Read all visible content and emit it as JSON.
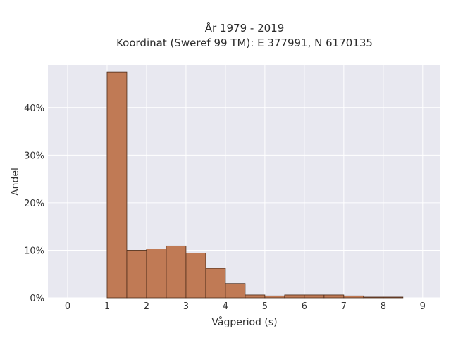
{
  "chart_data": {
    "type": "bar",
    "title_lines": [
      "År 1979 - 2019",
      "Koordinat (Sweref 99 TM): E 377991, N 6170135"
    ],
    "xlabel": "Vågperiod (s)",
    "ylabel": "Andel",
    "xlim": [
      -0.5,
      9.45
    ],
    "ylim": [
      0,
      49
    ],
    "x_ticks": [
      0,
      1,
      2,
      3,
      4,
      5,
      6,
      7,
      8,
      9
    ],
    "y_ticks": [
      0,
      10,
      20,
      30,
      40
    ],
    "y_tick_suffix": "%",
    "bin_width": 0.5,
    "bins": [
      {
        "start": 1.0,
        "value": 47.5
      },
      {
        "start": 1.5,
        "value": 10.0
      },
      {
        "start": 2.0,
        "value": 10.3
      },
      {
        "start": 2.5,
        "value": 10.9
      },
      {
        "start": 3.0,
        "value": 9.4
      },
      {
        "start": 3.5,
        "value": 6.2
      },
      {
        "start": 4.0,
        "value": 3.0
      },
      {
        "start": 4.5,
        "value": 0.6
      },
      {
        "start": 5.0,
        "value": 0.4
      },
      {
        "start": 5.5,
        "value": 0.6
      },
      {
        "start": 6.0,
        "value": 0.6
      },
      {
        "start": 6.5,
        "value": 0.6
      },
      {
        "start": 7.0,
        "value": 0.4
      },
      {
        "start": 7.5,
        "value": 0.15
      },
      {
        "start": 8.0,
        "value": 0.15
      }
    ],
    "bar_color": "#c07a55",
    "grid": true
  }
}
